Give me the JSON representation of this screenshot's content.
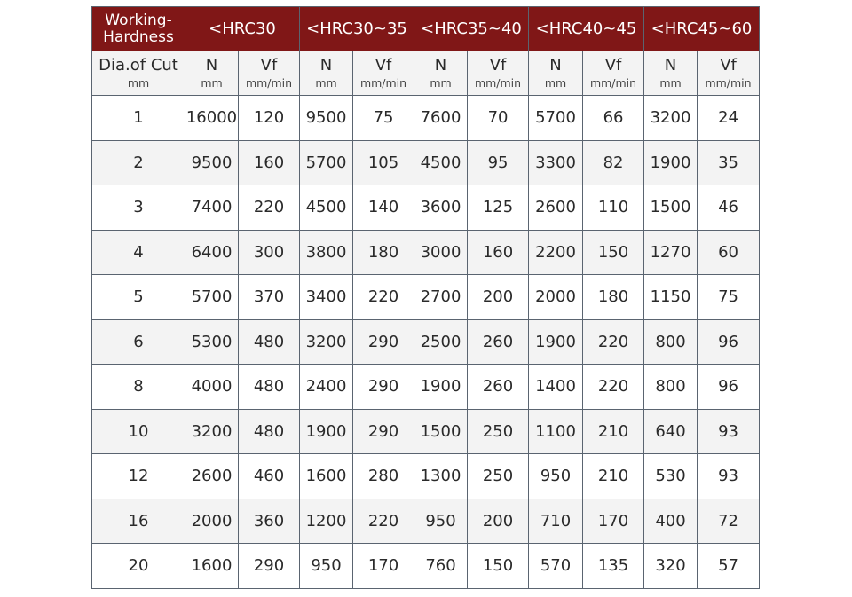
{
  "header": {
    "corner": "Working-\nHardness",
    "groups": [
      "<HRC30",
      "<HRC30~35",
      "<HRC35~40",
      "<HRC40~45",
      "<HRC45~60"
    ],
    "header_color": "#801717"
  },
  "subheader": {
    "first": {
      "label": "Dia.of Cut",
      "unit": "mm"
    },
    "n": {
      "label": "N",
      "unit": "mm"
    },
    "vf": {
      "label": "Vf",
      "unit": "mm/min"
    }
  },
  "rows": [
    [
      "1",
      "16000",
      "120",
      "9500",
      "75",
      "7600",
      "70",
      "5700",
      "66",
      "3200",
      "24"
    ],
    [
      "2",
      "9500",
      "160",
      "5700",
      "105",
      "4500",
      "95",
      "3300",
      "82",
      "1900",
      "35"
    ],
    [
      "3",
      "7400",
      "220",
      "4500",
      "140",
      "3600",
      "125",
      "2600",
      "110",
      "1500",
      "46"
    ],
    [
      "4",
      "6400",
      "300",
      "3800",
      "180",
      "3000",
      "160",
      "2200",
      "150",
      "1270",
      "60"
    ],
    [
      "5",
      "5700",
      "370",
      "3400",
      "220",
      "2700",
      "200",
      "2000",
      "180",
      "1150",
      "75"
    ],
    [
      "6",
      "5300",
      "480",
      "3200",
      "290",
      "2500",
      "260",
      "1900",
      "220",
      "800",
      "96"
    ],
    [
      "8",
      "4000",
      "480",
      "2400",
      "290",
      "1900",
      "260",
      "1400",
      "220",
      "800",
      "96"
    ],
    [
      "10",
      "3200",
      "480",
      "1900",
      "290",
      "1500",
      "250",
      "1100",
      "210",
      "640",
      "93"
    ],
    [
      "12",
      "2600",
      "460",
      "1600",
      "280",
      "1300",
      "250",
      "950",
      "210",
      "530",
      "93"
    ],
    [
      "16",
      "2000",
      "360",
      "1200",
      "220",
      "950",
      "200",
      "710",
      "170",
      "400",
      "72"
    ],
    [
      "20",
      "1600",
      "290",
      "950",
      "170",
      "760",
      "150",
      "570",
      "135",
      "320",
      "57"
    ]
  ]
}
